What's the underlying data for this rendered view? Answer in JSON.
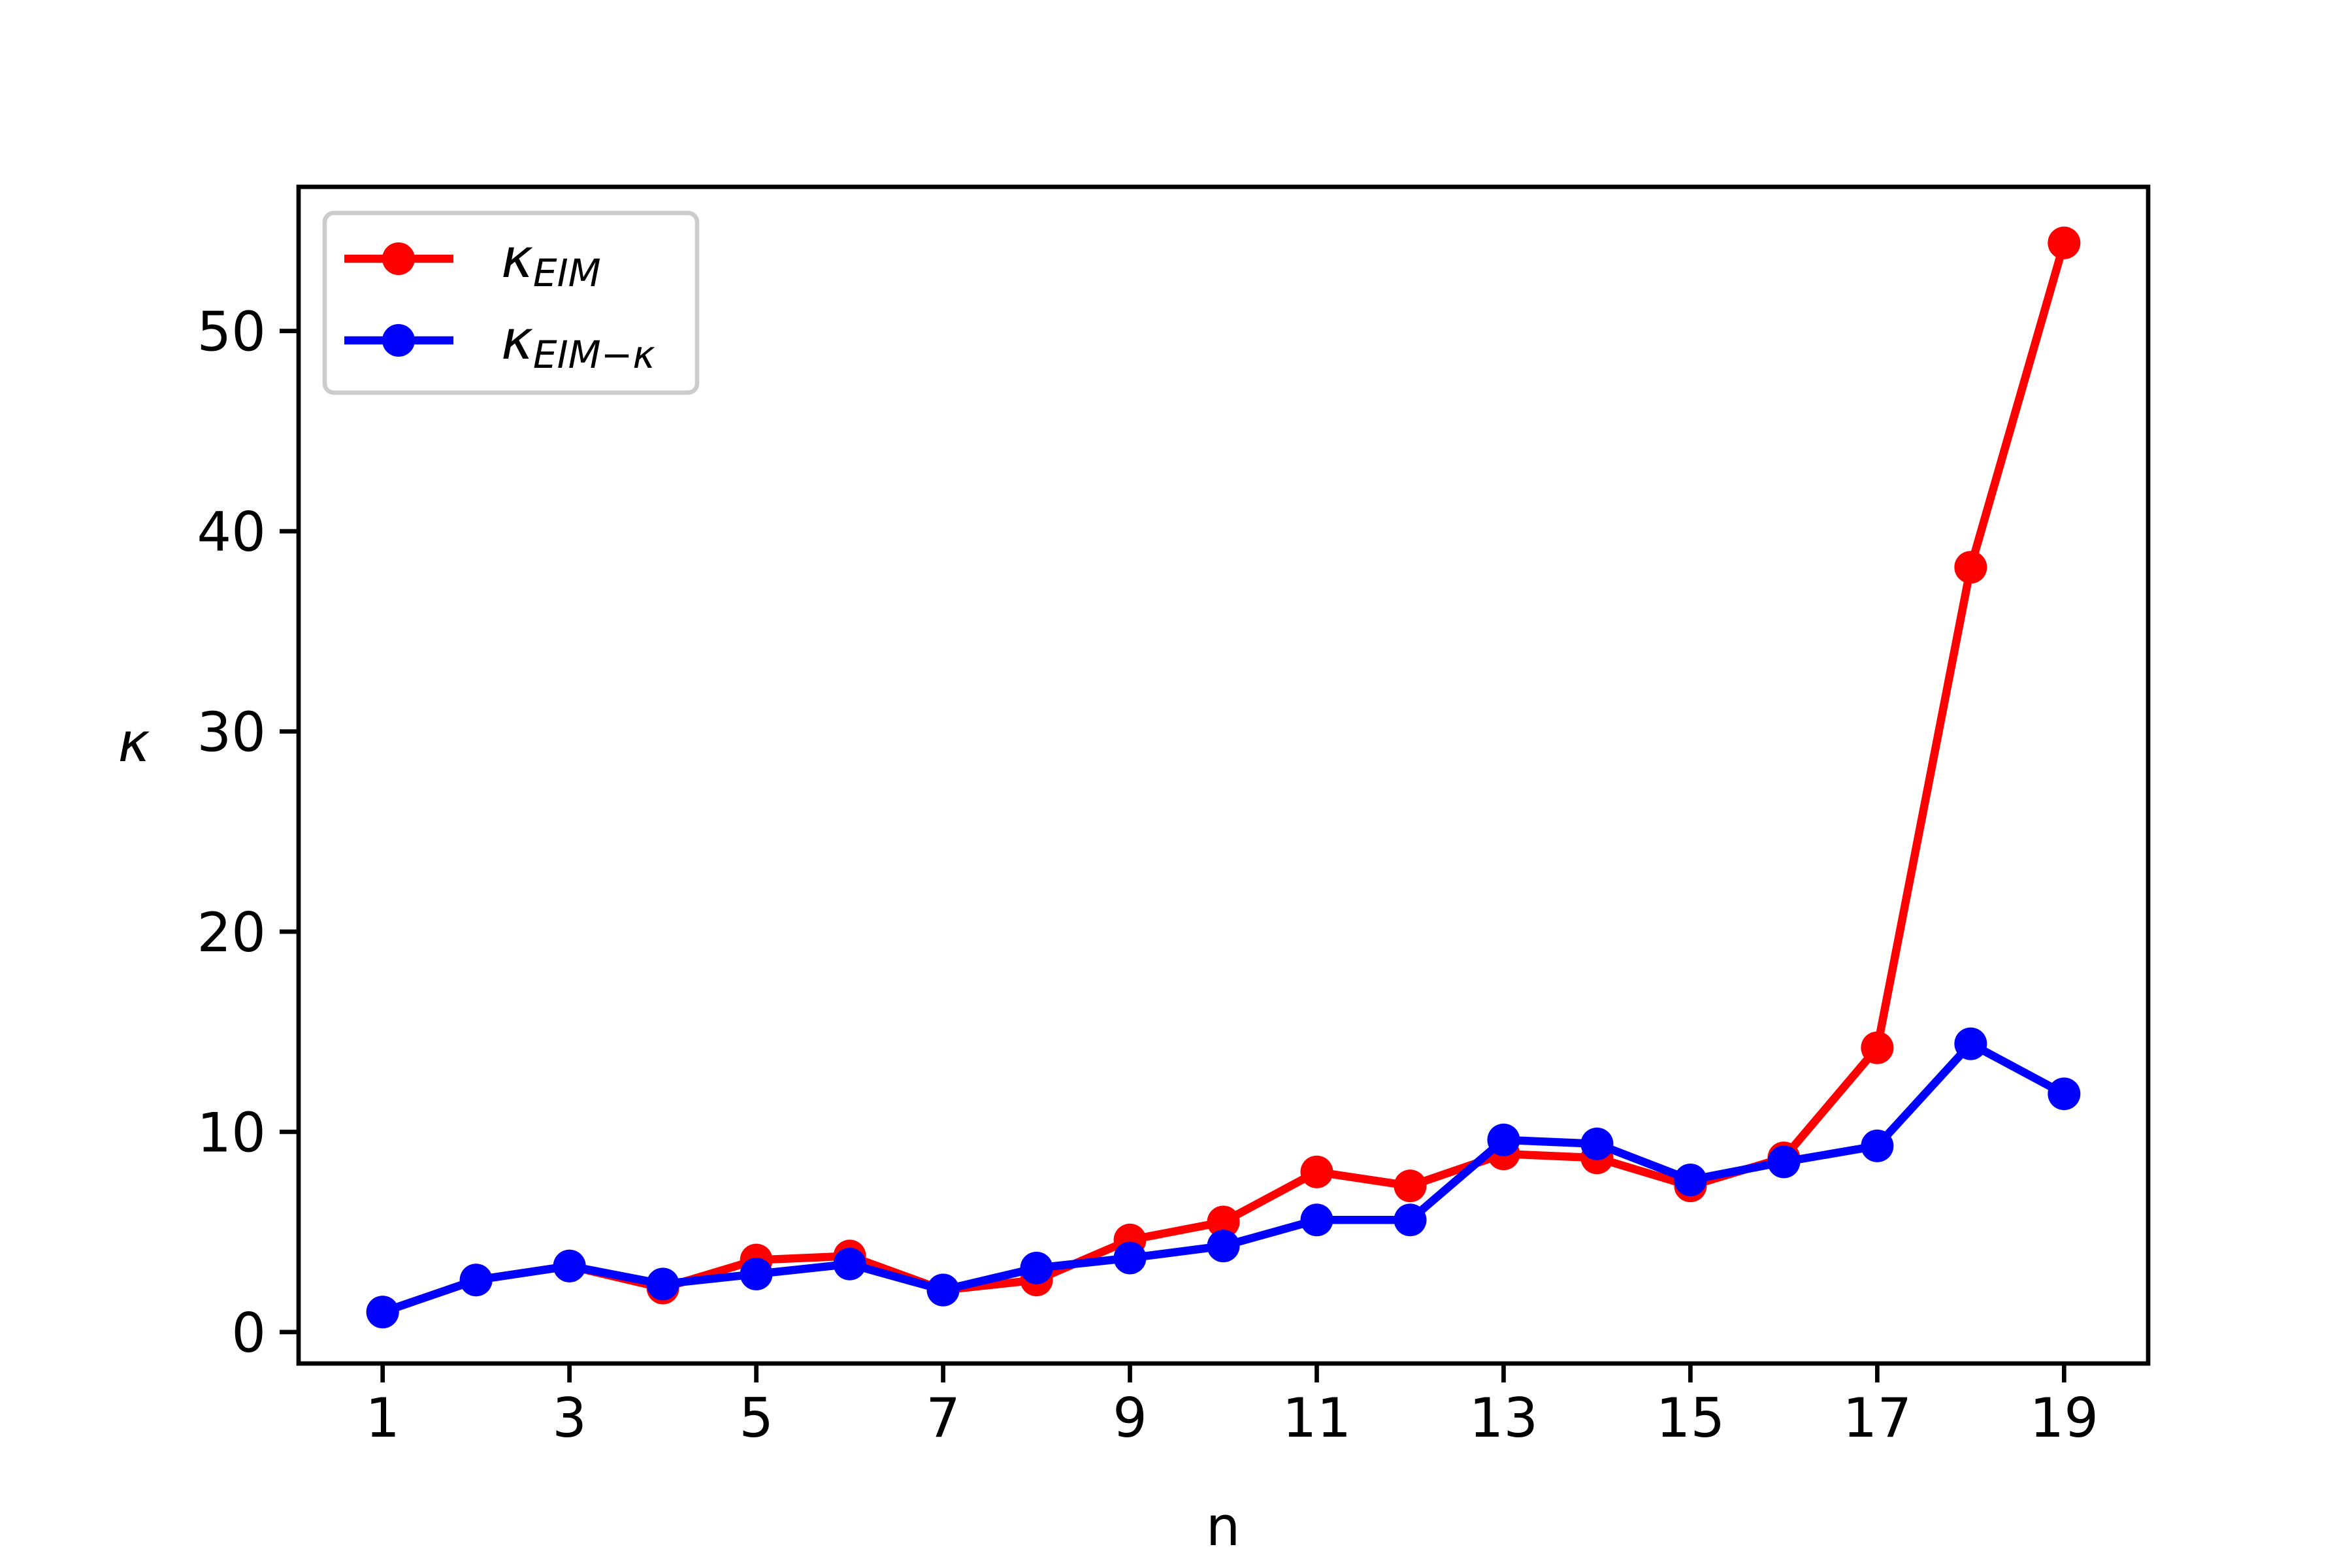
{
  "chart_data": {
    "type": "line",
    "x": [
      1,
      2,
      3,
      4,
      5,
      6,
      7,
      8,
      9,
      10,
      11,
      12,
      13,
      14,
      15,
      16,
      17,
      18,
      19
    ],
    "series": [
      {
        "name": "κEIM",
        "color": "#ff0000",
        "values": [
          1.0,
          2.6,
          3.3,
          2.2,
          3.6,
          3.8,
          2.1,
          2.6,
          4.6,
          5.5,
          8.0,
          7.3,
          8.9,
          8.7,
          7.3,
          8.7,
          14.2,
          38.2,
          54.4
        ]
      },
      {
        "name": "κEIM−κ",
        "color": "#0000ff",
        "values": [
          1.0,
          2.6,
          3.3,
          2.4,
          2.9,
          3.4,
          2.1,
          3.2,
          3.7,
          4.3,
          5.6,
          5.6,
          9.6,
          9.4,
          7.6,
          8.5,
          9.3,
          14.4,
          11.9
        ]
      }
    ],
    "x_label": "n",
    "y_label": "κ",
    "xlim": [
      0.1,
      19.9
    ],
    "xticks": [
      1,
      3,
      5,
      7,
      9,
      11,
      13,
      15,
      17,
      19
    ],
    "ylim": [
      -1.57,
      57.2
    ],
    "yticks": [
      0,
      10,
      20,
      30,
      40,
      50
    ],
    "legend": "upper left"
  }
}
